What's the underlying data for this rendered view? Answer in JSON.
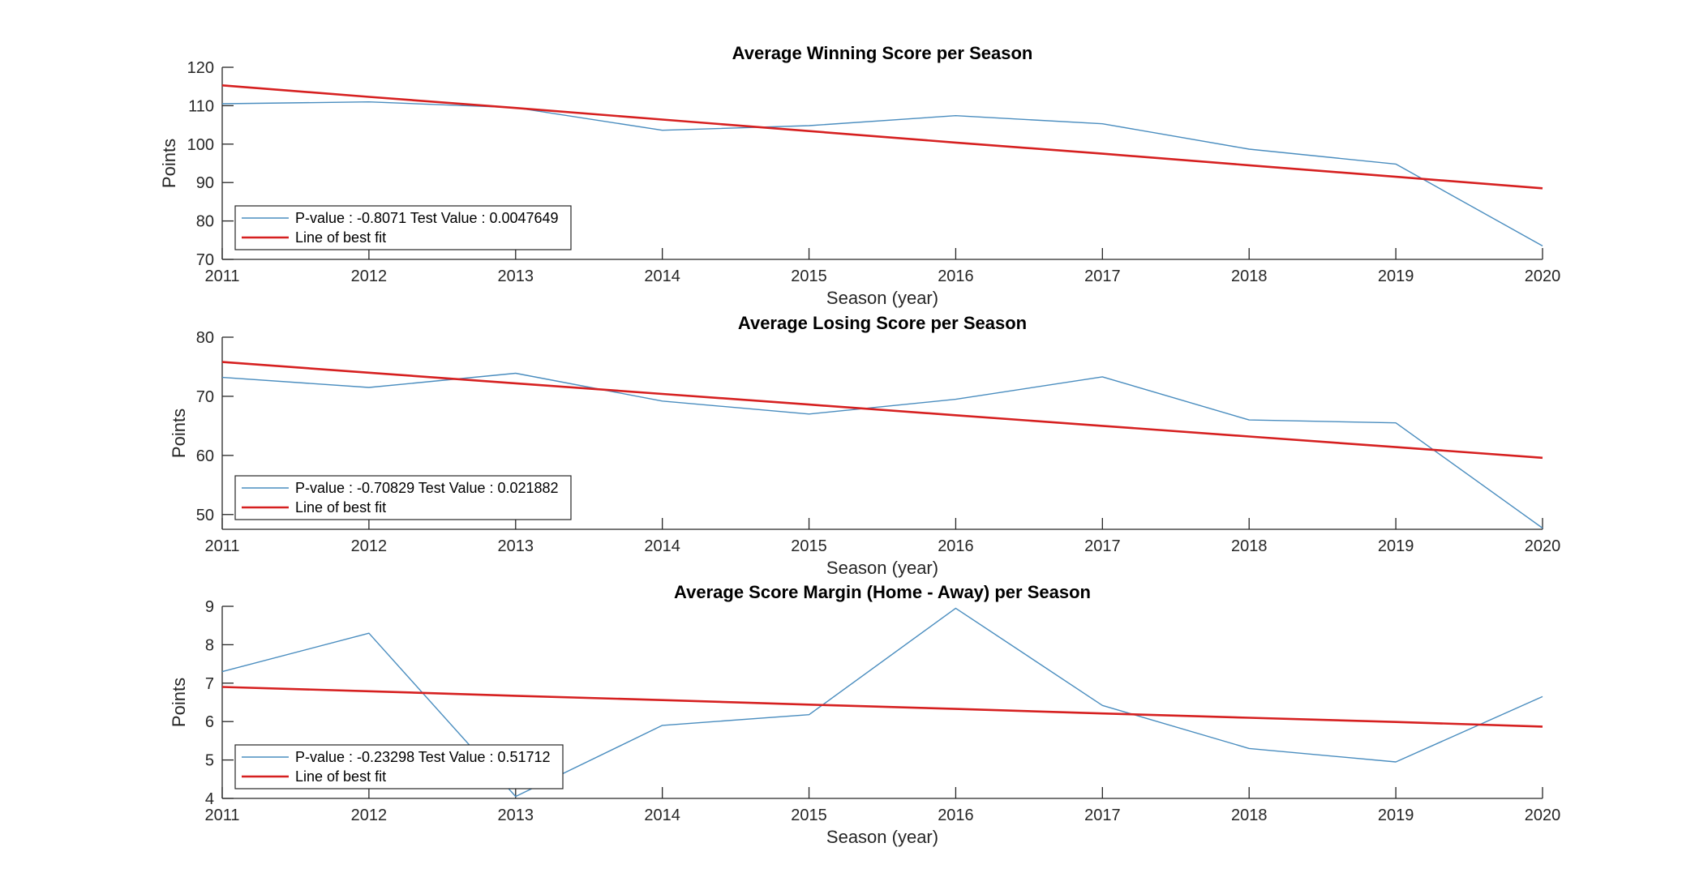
{
  "colors": {
    "series": "#4a8dbf",
    "fit": "#d62020",
    "axis": "#262626"
  },
  "chart_data": [
    {
      "type": "line",
      "title": "Average Winning Score per Season",
      "xlabel": "Season (year)",
      "ylabel": "Points",
      "x": [
        2011,
        2012,
        2013,
        2014,
        2015,
        2016,
        2017,
        2018,
        2019,
        2020
      ],
      "xlim": [
        2011,
        2020
      ],
      "ylim": [
        70,
        120
      ],
      "yticks": [
        70,
        80,
        90,
        100,
        110,
        120
      ],
      "grid": false,
      "legend_position": "bottom-left",
      "series": [
        {
          "name": "P-value : -0.8071 Test Value : 0.0047649",
          "values": [
            110.5,
            111,
            109.5,
            103.6,
            104.8,
            107.4,
            105.3,
            98.7,
            94.8,
            73.5
          ]
        },
        {
          "name": "Line of best fit",
          "values": [
            115.3,
            112.3,
            109.4,
            106.4,
            103.4,
            100.4,
            97.5,
            94.5,
            91.5,
            88.5
          ]
        }
      ]
    },
    {
      "type": "line",
      "title": "Average Losing Score per Season",
      "xlabel": "Season (year)",
      "ylabel": "Points",
      "x": [
        2011,
        2012,
        2013,
        2014,
        2015,
        2016,
        2017,
        2018,
        2019,
        2020
      ],
      "xlim": [
        2011,
        2020
      ],
      "ylim": [
        47.5,
        80
      ],
      "yticks": [
        50,
        60,
        70,
        80
      ],
      "grid": false,
      "legend_position": "bottom-left",
      "series": [
        {
          "name": "P-value : -0.70829 Test Value : 0.021882",
          "values": [
            73.2,
            71.5,
            73.9,
            69.2,
            67,
            69.5,
            73.3,
            66,
            65.5,
            47.7
          ]
        },
        {
          "name": "Line of best fit",
          "values": [
            75.8,
            74,
            72.2,
            70.4,
            68.6,
            66.8,
            65,
            63.2,
            61.4,
            59.6
          ]
        }
      ]
    },
    {
      "type": "line",
      "title": "Average Score Margin (Home - Away) per Season",
      "xlabel": "Season (year)",
      "ylabel": "Points",
      "x": [
        2011,
        2012,
        2013,
        2014,
        2015,
        2016,
        2017,
        2018,
        2019,
        2020
      ],
      "xlim": [
        2011,
        2020
      ],
      "ylim": [
        4,
        9
      ],
      "yticks": [
        4,
        5,
        6,
        7,
        8,
        9
      ],
      "grid": false,
      "legend_position": "bottom-left",
      "series": [
        {
          "name": "P-value : -0.23298 Test Value : 0.51712",
          "values": [
            7.3,
            8.3,
            4.05,
            5.9,
            6.18,
            8.95,
            6.42,
            5.3,
            4.95,
            6.65
          ]
        },
        {
          "name": "Line of best fit",
          "values": [
            6.9,
            6.79,
            6.67,
            6.56,
            6.44,
            6.33,
            6.21,
            6.1,
            5.99,
            5.87
          ]
        }
      ]
    }
  ]
}
